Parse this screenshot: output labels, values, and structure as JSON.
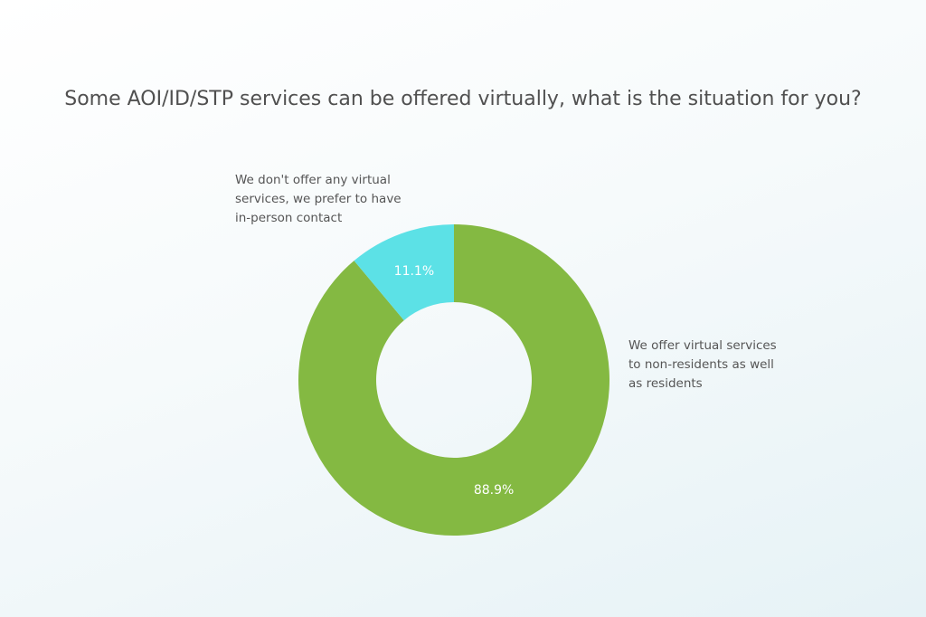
{
  "chart_data": {
    "type": "pie",
    "subtype": "donut",
    "title": "Some AOI/ID/STP services can be offered virtually, what is the situation for you?",
    "slices": [
      {
        "label": "We offer virtual services to non-residents as well as residents",
        "label_lines": [
          "We offer virtual services",
          "to non-residents as well",
          "as residents"
        ],
        "value": 88.9,
        "data_label": "88.9%",
        "color": "#84b942"
      },
      {
        "label": "We don't offer any virtual services, we prefer to have in-person contact",
        "label_lines": [
          "We don't offer any virtual",
          "services, we prefer to have",
          "in-person contact"
        ],
        "value": 11.1,
        "data_label": "11.1%",
        "color": "#5ce1e6"
      }
    ],
    "legend": "none"
  }
}
